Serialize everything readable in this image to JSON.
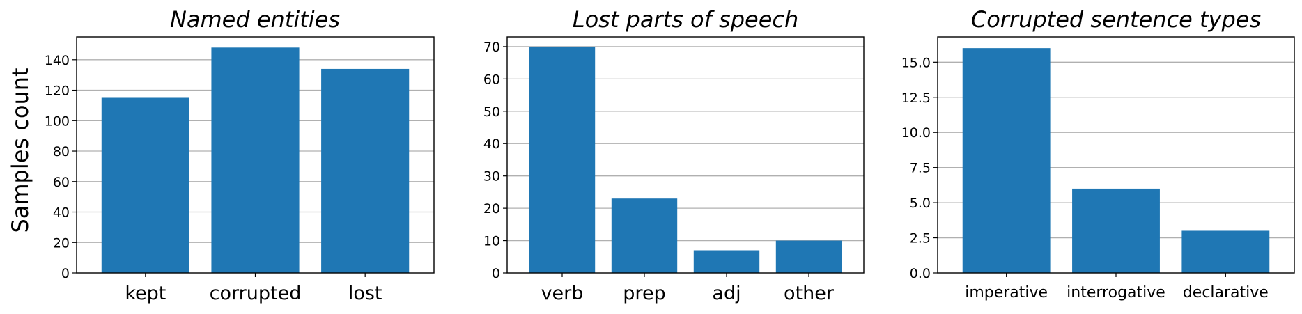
{
  "chart_data": [
    {
      "type": "bar",
      "title": "Named entities",
      "ylabel": "Samples count",
      "xlabel": "",
      "categories": [
        "kept",
        "corrupted",
        "lost"
      ],
      "values": [
        115,
        148,
        134
      ],
      "ylim": [
        0,
        155
      ],
      "yticks": [
        "0",
        "20",
        "40",
        "60",
        "80",
        "100",
        "120",
        "140"
      ],
      "grid": "horizontal",
      "bar_color": "#1f77b4"
    },
    {
      "type": "bar",
      "title": "Lost parts of speech",
      "ylabel": "",
      "xlabel": "",
      "categories": [
        "verb",
        "prep",
        "adj",
        "other"
      ],
      "values": [
        70,
        23,
        7,
        10
      ],
      "ylim": [
        0,
        73
      ],
      "yticks": [
        "0",
        "10",
        "20",
        "30",
        "40",
        "50",
        "60",
        "70"
      ],
      "grid": "horizontal",
      "bar_color": "#1f77b4"
    },
    {
      "type": "bar",
      "title": "Corrupted sentence types",
      "ylabel": "",
      "xlabel": "",
      "categories": [
        "imperative",
        "interrogative",
        "declarative"
      ],
      "values": [
        16,
        6,
        3
      ],
      "ylim": [
        0,
        16.8
      ],
      "yticks": [
        "0.0",
        "2.5",
        "5.0",
        "7.5",
        "10.0",
        "12.5",
        "15.0"
      ],
      "grid": "horizontal",
      "bar_color": "#1f77b4"
    }
  ]
}
